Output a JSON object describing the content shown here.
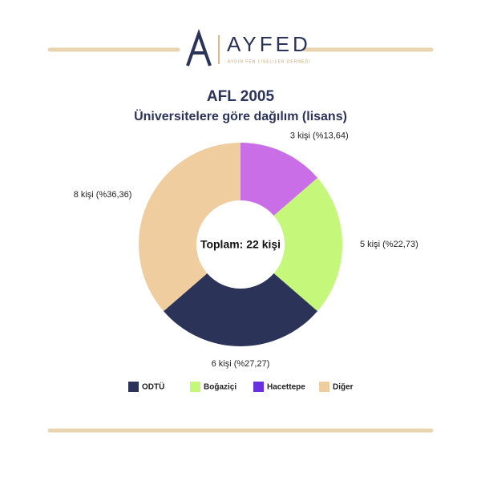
{
  "header": {
    "brand": "AYFED",
    "tagline": "AYDIN FEN LİSELİLER DERNEĞİ"
  },
  "chart_data": {
    "type": "donut",
    "title": "AFL 2005",
    "subtitle": "Üniversitelere göre dağılım (lisans)",
    "center_label": "Toplam: 22 kişi",
    "values": [
      3,
      5,
      6,
      8
    ],
    "value_labels": [
      "3 kişi (%13,64)",
      "5 kişi (%22,73)",
      "6 kişi (%27,27)",
      "8 kişi (%36,36)"
    ],
    "colors": [
      "#c96ee6",
      "#c4f77a",
      "#2c3358",
      "#efcd9e"
    ],
    "legend": [
      {
        "name": "ODTÜ",
        "color": "#2c3358"
      },
      {
        "name": "Boğaziçi",
        "color": "#c4f77a"
      },
      {
        "name": "Hacettepe",
        "color": "#6a2fe0"
      },
      {
        "name": "Diğer",
        "color": "#efcd9e"
      }
    ]
  }
}
